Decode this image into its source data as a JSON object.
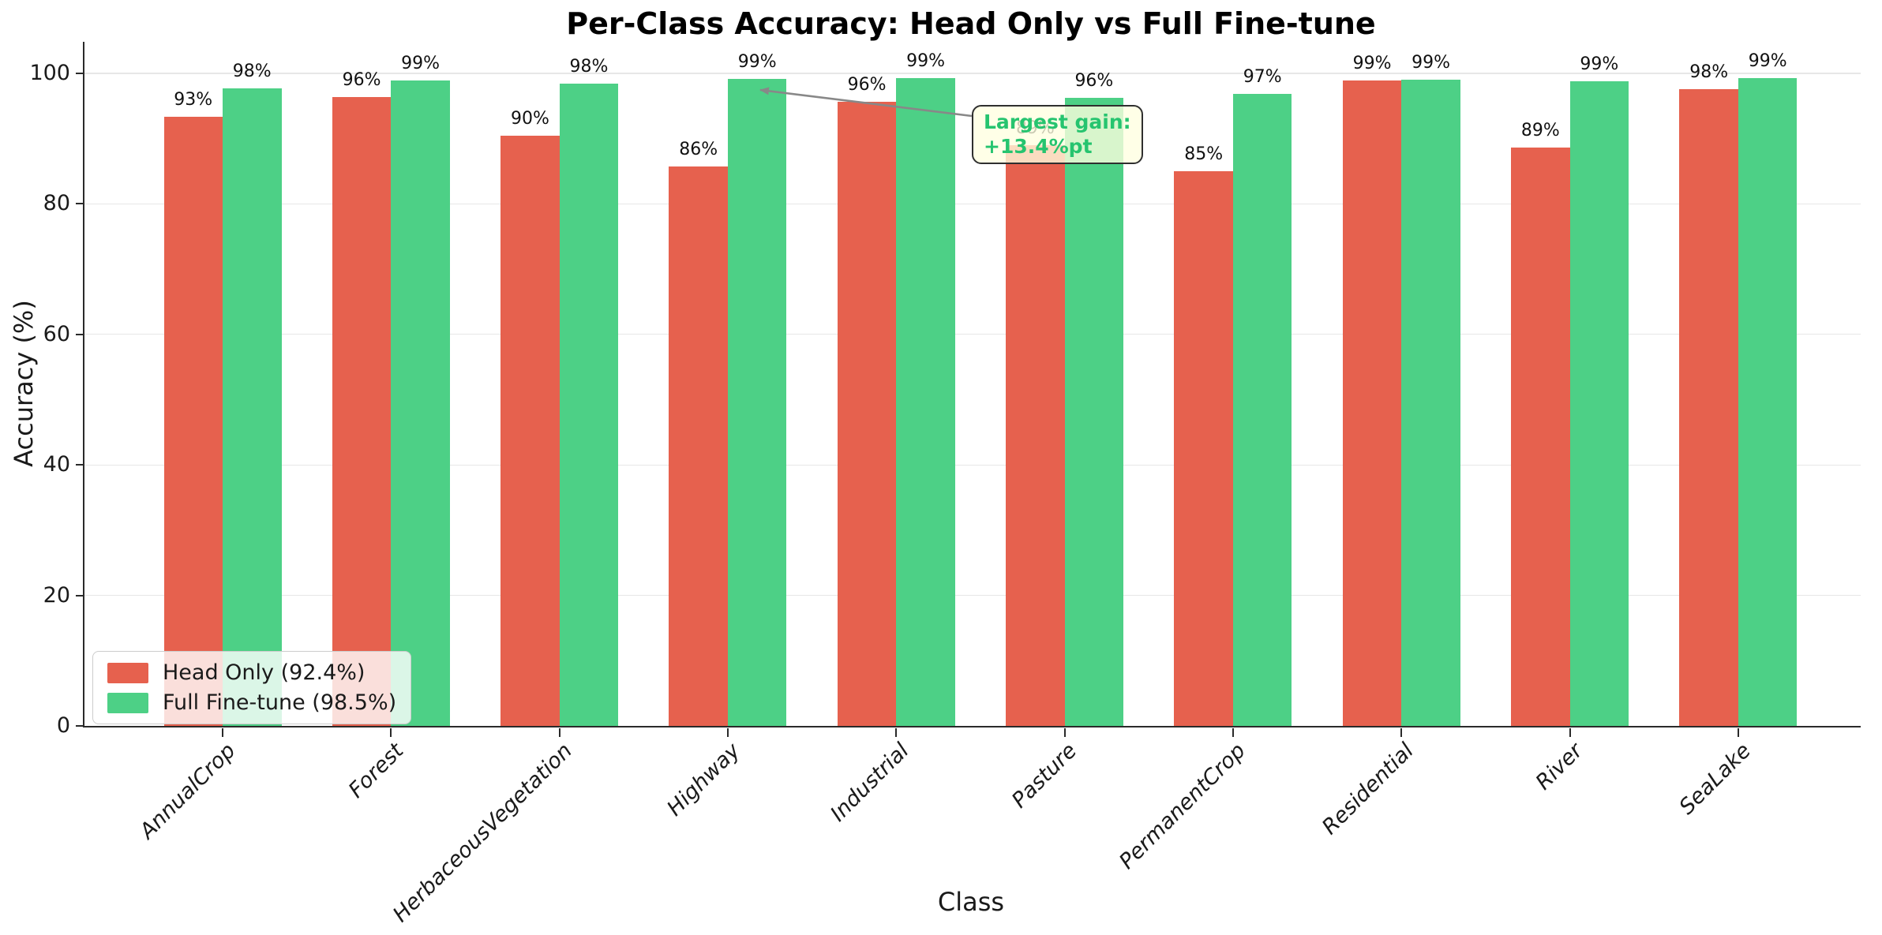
{
  "chart_data": {
    "type": "bar",
    "title": "Per-Class Accuracy: Head Only vs Full Fine-tune",
    "xlabel": "Class",
    "ylabel": "Accuracy (%)",
    "categories": [
      "AnnualCrop",
      "Forest",
      "HerbaceousVegetation",
      "Highway",
      "Industrial",
      "Pasture",
      "PermanentCrop",
      "Residential",
      "River",
      "SeaLake"
    ],
    "series": [
      {
        "name": "Head Only (92.4%)",
        "color": "#e6614e",
        "values": [
          93.4,
          96.4,
          90.4,
          85.7,
          95.6,
          89.0,
          85.0,
          98.9,
          88.6,
          97.6
        ],
        "bar_labels": [
          "93%",
          "96%",
          "90%",
          "86%",
          "96%",
          "89%",
          "85%",
          "99%",
          "89%",
          "98%"
        ]
      },
      {
        "name": "Full Fine-tune (98.5%)",
        "color": "#4dd086",
        "values": [
          97.7,
          98.9,
          98.4,
          99.1,
          99.3,
          96.3,
          96.9,
          99.0,
          98.8,
          99.3
        ],
        "bar_labels": [
          "98%",
          "99%",
          "98%",
          "99%",
          "99%",
          "96%",
          "97%",
          "99%",
          "99%",
          "99%"
        ]
      }
    ],
    "ylim": [
      0,
      104.8
    ],
    "yticks": [
      0,
      20,
      40,
      60,
      80,
      100
    ],
    "grid": true,
    "legend_position": "lower left",
    "annotation": {
      "line1": "Largest gain:",
      "line2": "+13.4%pt",
      "text_color": "#26c46f",
      "arrow_color": "#888888",
      "target_category": "Highway"
    }
  }
}
